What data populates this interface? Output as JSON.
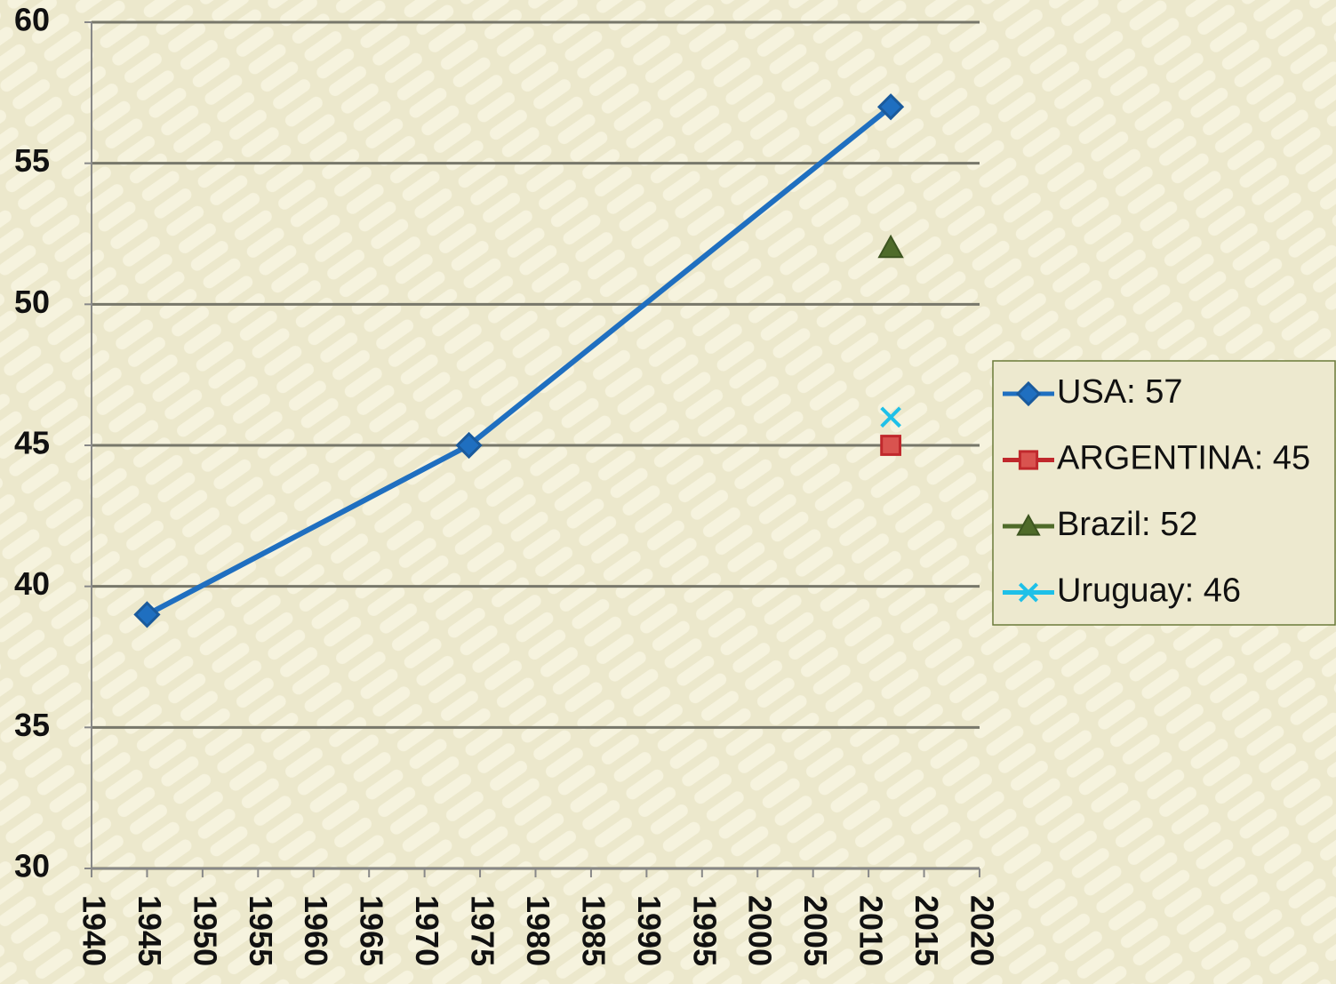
{
  "chart_data": {
    "type": "line",
    "xlim": [
      1940,
      2020
    ],
    "xticks": [
      1940,
      1945,
      1950,
      1955,
      1960,
      1965,
      1970,
      1975,
      1980,
      1985,
      1990,
      1995,
      2000,
      2005,
      2010,
      2015,
      2020
    ],
    "ylim": [
      30,
      60
    ],
    "yticks": [
      30,
      35,
      40,
      45,
      50,
      55,
      60
    ],
    "grid": true,
    "legend": "right",
    "series": [
      {
        "name": "USA: 57",
        "color": "#1f6fc0",
        "marker": "diamond",
        "x": [
          1945,
          1974,
          2012
        ],
        "values": [
          39,
          45,
          57
        ]
      },
      {
        "name": "ARGENTINA: 45",
        "color": "#c0282c",
        "marker": "square",
        "x": [
          2012
        ],
        "values": [
          45
        ]
      },
      {
        "name": "Brazil: 52",
        "color": "#4f6b2a",
        "marker": "triangle",
        "x": [
          2012
        ],
        "values": [
          52
        ]
      },
      {
        "name": "Uruguay: 46",
        "color": "#1ec0e8",
        "marker": "x",
        "x": [
          2012
        ],
        "values": [
          46
        ]
      }
    ]
  }
}
